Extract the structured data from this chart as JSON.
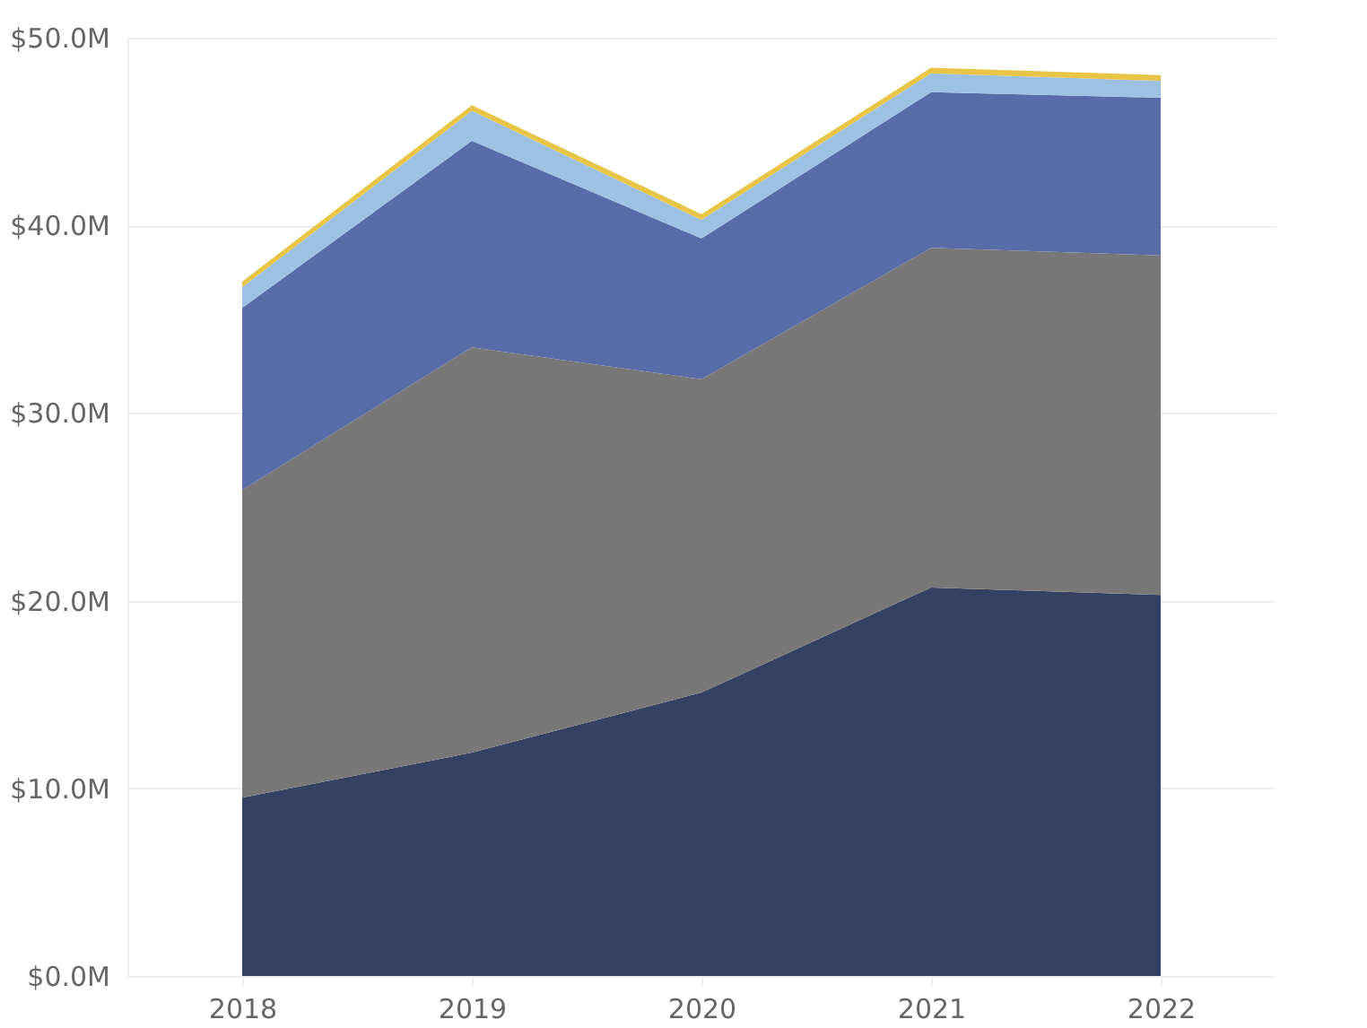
{
  "chart_data": {
    "type": "area",
    "stacked": true,
    "categories": [
      "2018",
      "2019",
      "2020",
      "2021",
      "2022"
    ],
    "series": [
      {
        "color": "#354163",
        "values": [
          9.5,
          11.9,
          15.1,
          20.7,
          20.3
        ]
      },
      {
        "color": "#787878",
        "values": [
          16.4,
          21.6,
          16.7,
          18.1,
          18.1
        ]
      },
      {
        "color": "#586ca8",
        "values": [
          9.7,
          11.0,
          7.5,
          8.3,
          8.4
        ]
      },
      {
        "color": "#9dc2e4",
        "values": [
          1.1,
          1.6,
          1.0,
          1.0,
          0.9
        ]
      },
      {
        "color": "#e8c547",
        "values": [
          0.3,
          0.3,
          0.3,
          0.3,
          0.3
        ]
      }
    ],
    "ylim": [
      0,
      50
    ],
    "yticks": [
      {
        "value": 0,
        "label": "$0.0M"
      },
      {
        "value": 10,
        "label": "$10.0M"
      },
      {
        "value": 20,
        "label": "$20.0M"
      },
      {
        "value": 30,
        "label": "$30.0M"
      },
      {
        "value": 40,
        "label": "$40.0M"
      },
      {
        "value": 50,
        "label": "$50.0M"
      }
    ],
    "grid": "y",
    "legend": false
  }
}
